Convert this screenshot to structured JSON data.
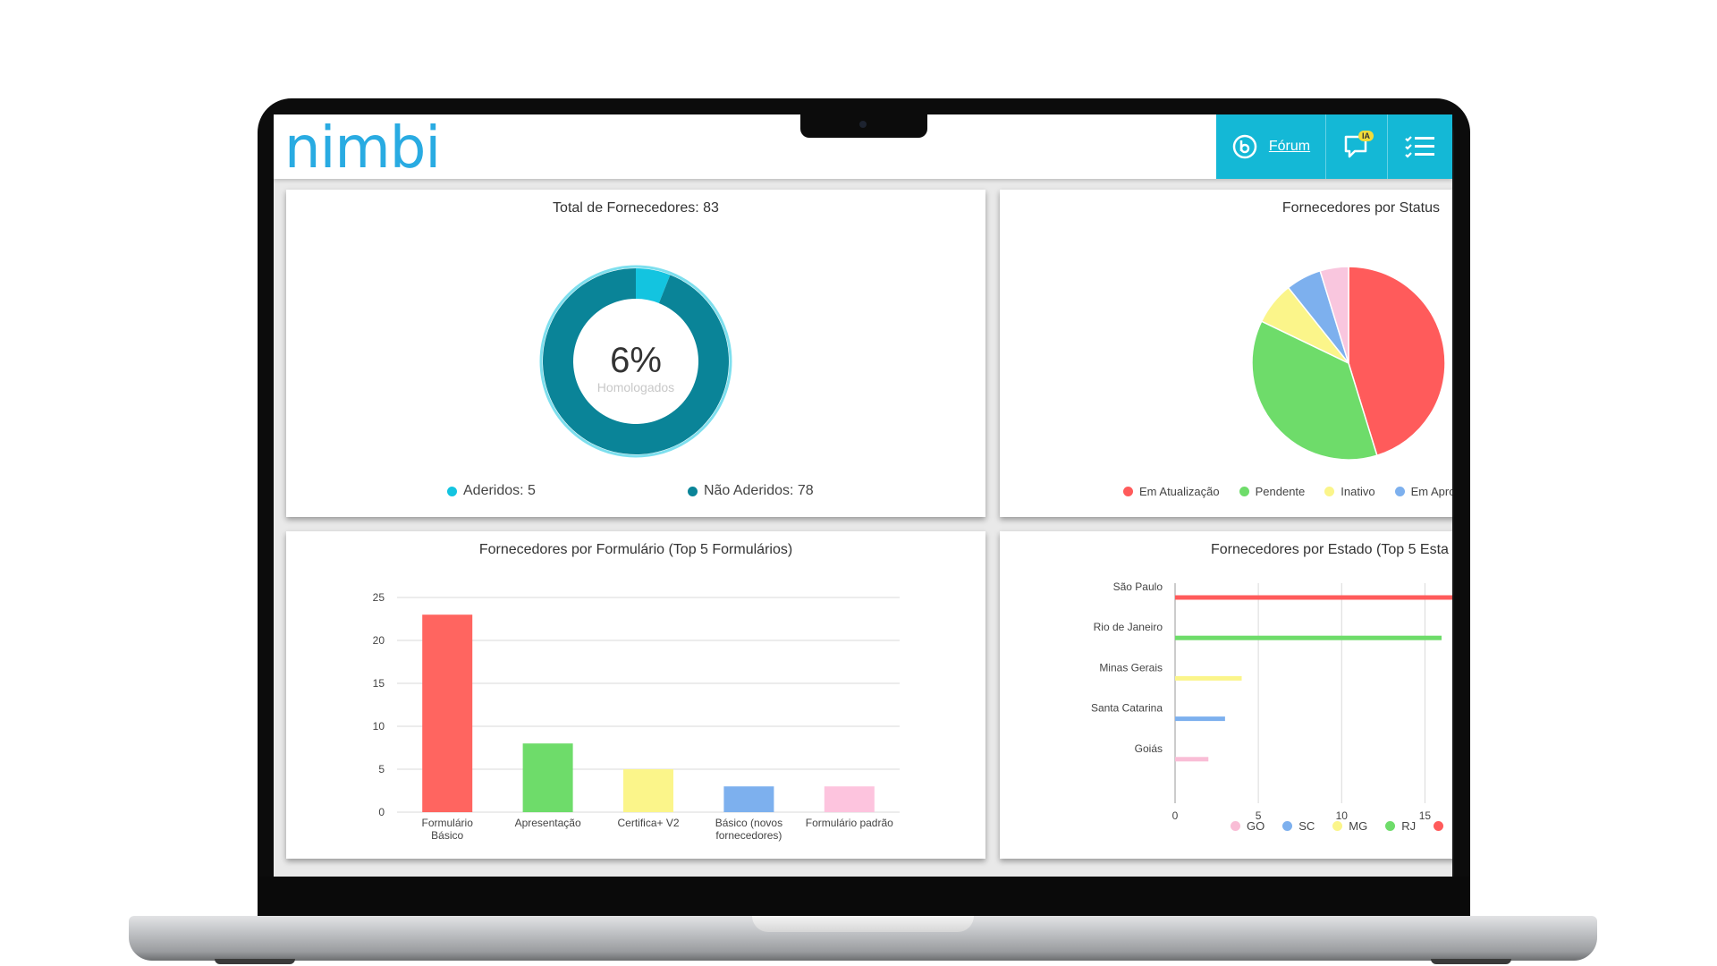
{
  "header": {
    "logo": "nimbi",
    "forum_label": "Fórum",
    "chat_badge": "IA",
    "icons": [
      "forum-b-icon",
      "chat-bubble-icon",
      "checklist-menu-icon"
    ],
    "accent_color": "#14b8d6"
  },
  "donut_card": {
    "title": "Total de Fornecedores: 83",
    "percent": "6%",
    "caption": "Homologados",
    "legend": [
      {
        "label": "Aderidos: 5",
        "color": "#13c4e0"
      },
      {
        "label": "Não Aderidos: 78",
        "color": "#0a8498"
      }
    ]
  },
  "status_card": {
    "title": "Fornecedores por Status",
    "legend": [
      {
        "label": "Em Atualização",
        "color": "#ff5b5b"
      },
      {
        "label": "Pendente",
        "color": "#6edc6a"
      },
      {
        "label": "Inativo",
        "color": "#fbf58a"
      },
      {
        "label": "Em Aprov",
        "color": "#7db0ee"
      }
    ]
  },
  "form_card": {
    "title": "Fornecedores por Formulário (Top 5 Formulários)"
  },
  "state_card": {
    "title": "Fornecedores por Estado (Top 5 Esta",
    "legend": [
      {
        "label": "GO",
        "color": "#f9bdd6"
      },
      {
        "label": "SC",
        "color": "#7db0ee"
      },
      {
        "label": "MG",
        "color": "#fbf58a"
      },
      {
        "label": "RJ",
        "color": "#6edc6a"
      },
      {
        "label": "",
        "color": "#ff5b5b"
      }
    ]
  },
  "chart_data": [
    {
      "type": "pie",
      "variant": "donut",
      "title": "Total de Fornecedores: 83",
      "categories": [
        "Aderidos",
        "Não Aderidos"
      ],
      "values": [
        5,
        78
      ],
      "colors": [
        "#13c4e0",
        "#0a8498"
      ]
    },
    {
      "type": "pie",
      "title": "Fornecedores por Status",
      "categories": [
        "Em Atualização",
        "Pendente",
        "Inativo",
        "Em Aprov",
        ""
      ],
      "values": [
        38,
        31,
        6,
        5,
        4
      ],
      "colors": [
        "#ff5b5b",
        "#6edc6a",
        "#fbf58a",
        "#7db0ee",
        "#f9c6de"
      ]
    },
    {
      "type": "bar",
      "title": "Fornecedores por Formulário (Top 5 Formulários)",
      "categories": [
        [
          "Formulário",
          "Básico"
        ],
        [
          "Apresentação"
        ],
        [
          "Certifica+ V2"
        ],
        [
          "Básico (novos",
          "fornecedores)"
        ],
        [
          "Formulário padrão"
        ]
      ],
      "values": [
        23,
        8,
        5,
        3,
        3
      ],
      "colors": [
        "#ff6560",
        "#6edc6a",
        "#fbf58a",
        "#7db0ee",
        "#fdc4de"
      ],
      "ylim": [
        0,
        25
      ],
      "yticks": [
        0,
        5,
        10,
        15,
        20,
        25
      ],
      "grid": true
    },
    {
      "type": "bar",
      "orientation": "horizontal",
      "title": "Fornecedores por Estado (Top 5 Esta",
      "categories": [
        "São Paulo",
        "Rio de Janeiro",
        "Minas Gerais",
        "Santa Catarina",
        "Goiás"
      ],
      "values": [
        17,
        16,
        4,
        3,
        2
      ],
      "colors": [
        "#ff5b5b",
        "#6edc6a",
        "#fbf58a",
        "#7db0ee",
        "#f9bdd6"
      ],
      "xlim": [
        0,
        16
      ],
      "xticks": [
        0,
        5,
        10,
        15
      ],
      "grid": true
    }
  ]
}
